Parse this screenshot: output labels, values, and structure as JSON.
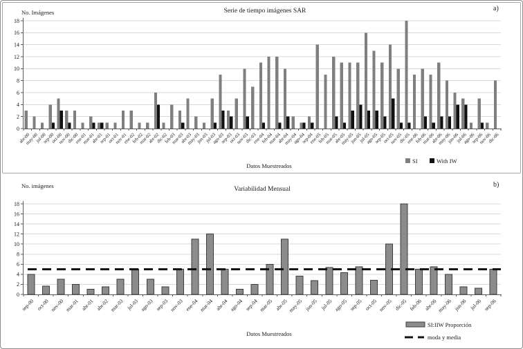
{
  "markers": {
    "a": "a)",
    "b": "b)"
  },
  "colors": {
    "si_bar": "#7f7f7f",
    "with_iw_bar": "#111111",
    "proportion_bar_fill": "#8c8c8c",
    "proportion_bar_border": "#3d3d3d",
    "reference_line": "#111111",
    "gridline": "#d9d9d9",
    "axis": "#595959",
    "text": "#1a1a1a"
  },
  "chart_data": [
    {
      "type": "bar",
      "title": "Serie de tiempo imágenes SAR",
      "ylabel": "No. Imágenes",
      "xlabel": "Datos Muestreados",
      "ylim": [
        0,
        18
      ],
      "ytick_step": 2,
      "grid": true,
      "legend_position": "bottom-right",
      "categories": [
        "abr-00",
        "may-00",
        "jul-00",
        "sep-00",
        "oct-00",
        "nov-00",
        "dic-00",
        "ene-01",
        "mar-01",
        "abr-01",
        "sep-01",
        "oct-01",
        "nov-01",
        "ene-02",
        "feb-02",
        "mar-02",
        "abr-02",
        "dic-02",
        "feb-03",
        "mar-03",
        "abr-03",
        "may-03",
        "jun-03",
        "jul-03",
        "ago-03",
        "sep-03",
        "oct-03",
        "nov-03",
        "dic-03",
        "ene-04",
        "feb-04",
        "mar-04",
        "abr-04",
        "may-04",
        "ago-04",
        "sep-04",
        "ene-05",
        "feb-05",
        "mar-05",
        "abr-05",
        "may-05",
        "jun-05",
        "jul-05",
        "ago-05",
        "sep-05",
        "oct-05",
        "nov-05",
        "dic-05",
        "ene-06",
        "feb-06",
        "mar-06",
        "abr-06",
        "may-06",
        "jun-06",
        "jul-06",
        "ago-06",
        "sep-06",
        "nov-06",
        "dic-06"
      ],
      "series": [
        {
          "name": "SI",
          "color": "#7f7f7f",
          "values": [
            3,
            2,
            1,
            4,
            5,
            3,
            3,
            1,
            2,
            1,
            1,
            1,
            3,
            3,
            1,
            1,
            6,
            1,
            4,
            3,
            5,
            2,
            1,
            5,
            9,
            3,
            5,
            10,
            7,
            11,
            12,
            12,
            10,
            2,
            1,
            2,
            14,
            9,
            12,
            11,
            11,
            11,
            16,
            13,
            11,
            14,
            10,
            18,
            9,
            10,
            9,
            11,
            8,
            6,
            5,
            1,
            5,
            1,
            8
          ]
        },
        {
          "name": "With IW",
          "color": "#111111",
          "values": [
            0,
            0,
            0,
            1,
            3,
            1,
            0,
            0,
            1,
            1,
            0,
            0,
            0,
            0,
            0,
            0,
            4,
            0,
            0,
            1,
            0,
            0,
            0,
            1,
            3,
            2,
            0,
            2,
            0,
            1,
            0,
            1,
            2,
            0,
            1,
            1,
            0,
            0,
            2,
            1,
            3,
            4,
            3,
            3,
            2,
            5,
            1,
            1,
            0,
            2,
            1,
            2,
            2,
            4,
            4,
            0,
            1,
            0,
            0
          ]
        }
      ]
    },
    {
      "type": "bar",
      "title": "Variabilidad Mensual",
      "ylabel": "No. imágenes",
      "xlabel": "Datos Muestreados",
      "ylim": [
        0,
        18
      ],
      "ytick_step": 2,
      "grid": true,
      "legend_position": "bottom-right",
      "categories": [
        "sep-00",
        "oct-00",
        "nov-00",
        "mar-01",
        "abr-01",
        "abr-02",
        "mar-03",
        "jul-03",
        "ago-03",
        "sep-03",
        "nov-03",
        "ene-04",
        "mar-04",
        "abr-04",
        "ago-04",
        "sep-04",
        "mar-05",
        "abr-05",
        "may-05",
        "jun-05",
        "jul-05",
        "ago-05",
        "sep-05",
        "oct-05",
        "nov-05",
        "dic-05",
        "feb-06",
        "abr-06",
        "may-06",
        "jun-06",
        "jul-06",
        "sep-06"
      ],
      "series": [
        {
          "name": "SI:IIW Proporción",
          "color": "#8c8c8c",
          "border": "#3d3d3d",
          "values": [
            4,
            1.67,
            3,
            2,
            1,
            1.5,
            3,
            5,
            3,
            1.5,
            5,
            11,
            12,
            5,
            1,
            2,
            6,
            11,
            3.67,
            2.75,
            5.33,
            4.33,
            5.5,
            2.8,
            10,
            18,
            5,
            5.5,
            4,
            1.5,
            1.25,
            5
          ]
        }
      ],
      "reference_line": {
        "label": "moda y media",
        "value": 5,
        "style": "dashed",
        "color": "#111111"
      }
    }
  ]
}
